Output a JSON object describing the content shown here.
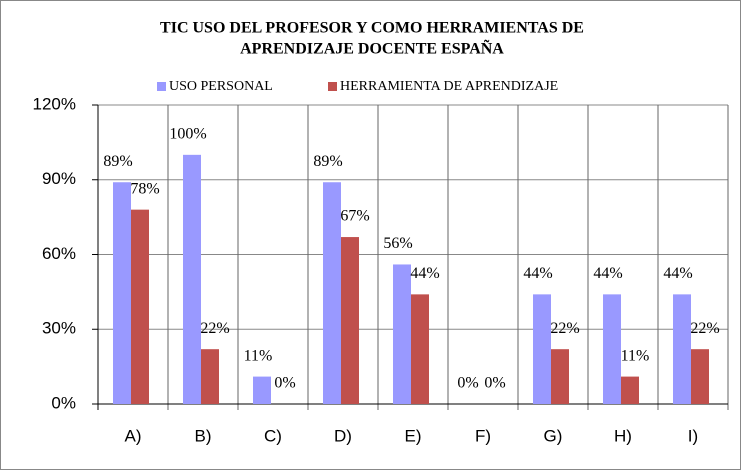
{
  "chart_data": {
    "type": "bar",
    "title": [
      "TIC USO DEL PROFESOR Y COMO HERRAMIENTAS DE",
      "APRENDIZAJE DOCENTE ESPAÑA"
    ],
    "categories": [
      "A)",
      "B)",
      "C)",
      "D)",
      "E)",
      "F)",
      "G)",
      "H)",
      "I)"
    ],
    "series": [
      {
        "name": "USO PERSONAL",
        "color": "#9999ff",
        "values": [
          89,
          100,
          11,
          89,
          56,
          0,
          44,
          44,
          44
        ],
        "value_labels": [
          "89%",
          "100%",
          "11%",
          "89%",
          "56%",
          "0%",
          "44%",
          "44%",
          "44%"
        ]
      },
      {
        "name": "HERRAMIENTA DE APRENDIZAJE",
        "color": "#c0504d",
        "values": [
          78,
          22,
          0,
          67,
          44,
          0,
          22,
          11,
          22
        ],
        "value_labels": [
          "78%",
          "22%",
          "0%",
          "67%",
          "44%",
          "0%",
          "22%",
          "11%",
          "22%"
        ]
      }
    ],
    "ylim": [
      0,
      120
    ],
    "yticks": [
      {
        "value": 0,
        "label": "0%"
      },
      {
        "value": 30,
        "label": "30%"
      },
      {
        "value": 60,
        "label": "60%"
      },
      {
        "value": 90,
        "label": "90%"
      },
      {
        "value": 120,
        "label": "120%"
      }
    ],
    "grid": true,
    "legend": "top"
  }
}
